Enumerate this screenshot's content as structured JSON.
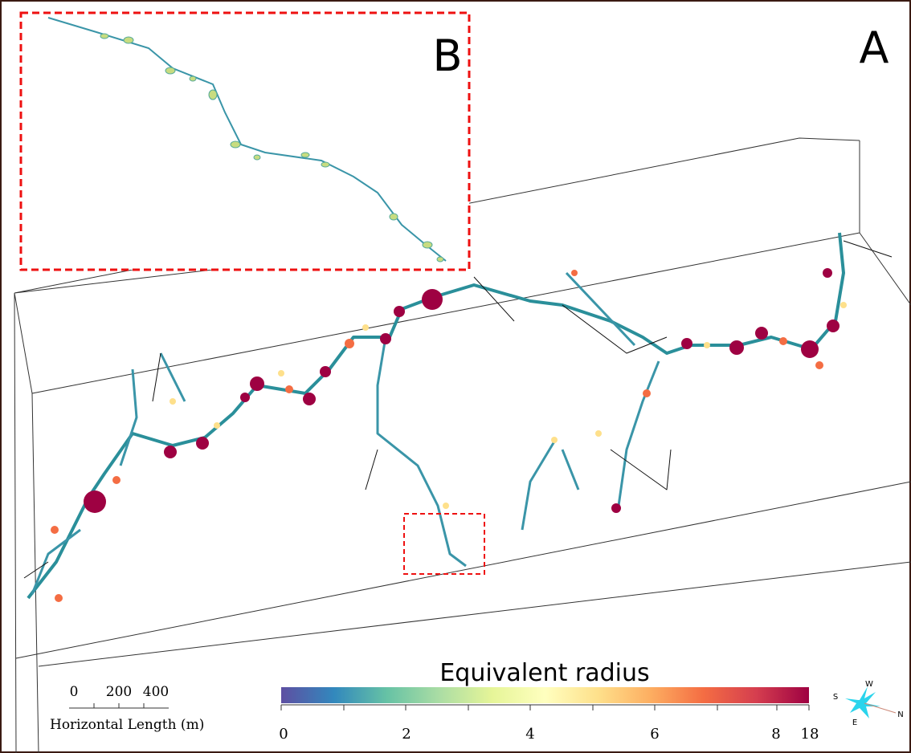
{
  "panels": {
    "main_label": "A",
    "inset_label": "B"
  },
  "colorbar": {
    "title": "Equivalent radius",
    "ticks": [
      0,
      2,
      4,
      6,
      8,
      18
    ]
  },
  "scale_bar": {
    "ticks": [
      0,
      200,
      400
    ],
    "label": "Horizontal Length (m)"
  },
  "compass": {
    "s": "S",
    "w": "W",
    "n": "N",
    "e": "E"
  }
}
